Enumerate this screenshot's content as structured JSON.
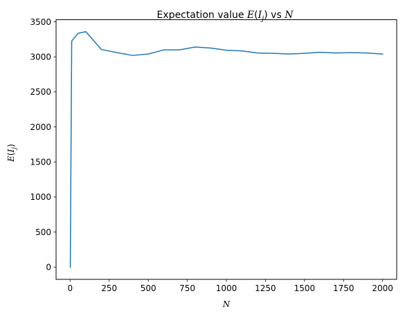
{
  "chart_data": {
    "type": "line",
    "title": {
      "prefix": "Expectation value ",
      "math_e": "E",
      "paren_open": "(",
      "math_i": "I",
      "math_sub": "j",
      "paren_close": ")",
      "vs": " vs ",
      "math_n": "N"
    },
    "xlabel": "N",
    "ylabel": {
      "math_e": "E",
      "paren_open": "(",
      "math_i": "I",
      "math_sub": "j",
      "paren_close": ")"
    },
    "xlim": [
      -90,
      2090
    ],
    "ylim": [
      -175,
      3530
    ],
    "xticks": [
      0,
      250,
      500,
      750,
      1000,
      1250,
      1500,
      1750,
      2000
    ],
    "yticks": [
      0,
      500,
      1000,
      1500,
      2000,
      2500,
      3000,
      3500
    ],
    "xtick_labels": [
      "0",
      "250",
      "500",
      "750",
      "1000",
      "1250",
      "1500",
      "1750",
      "2000"
    ],
    "ytick_labels": [
      "0",
      "500",
      "1000",
      "1500",
      "2000",
      "2500",
      "3000",
      "3500"
    ],
    "grid": false,
    "series": [
      {
        "color": "#1f77b4",
        "x": [
          1,
          10,
          50,
          100,
          200,
          300,
          400,
          500,
          600,
          700,
          800,
          900,
          1000,
          1100,
          1200,
          1300,
          1400,
          1500,
          1600,
          1700,
          1800,
          1900,
          2000
        ],
        "y": [
          0,
          3225,
          3335,
          3360,
          3105,
          3060,
          3020,
          3040,
          3100,
          3100,
          3140,
          3125,
          3095,
          3085,
          3055,
          3050,
          3040,
          3050,
          3065,
          3055,
          3060,
          3055,
          3040
        ]
      }
    ]
  }
}
